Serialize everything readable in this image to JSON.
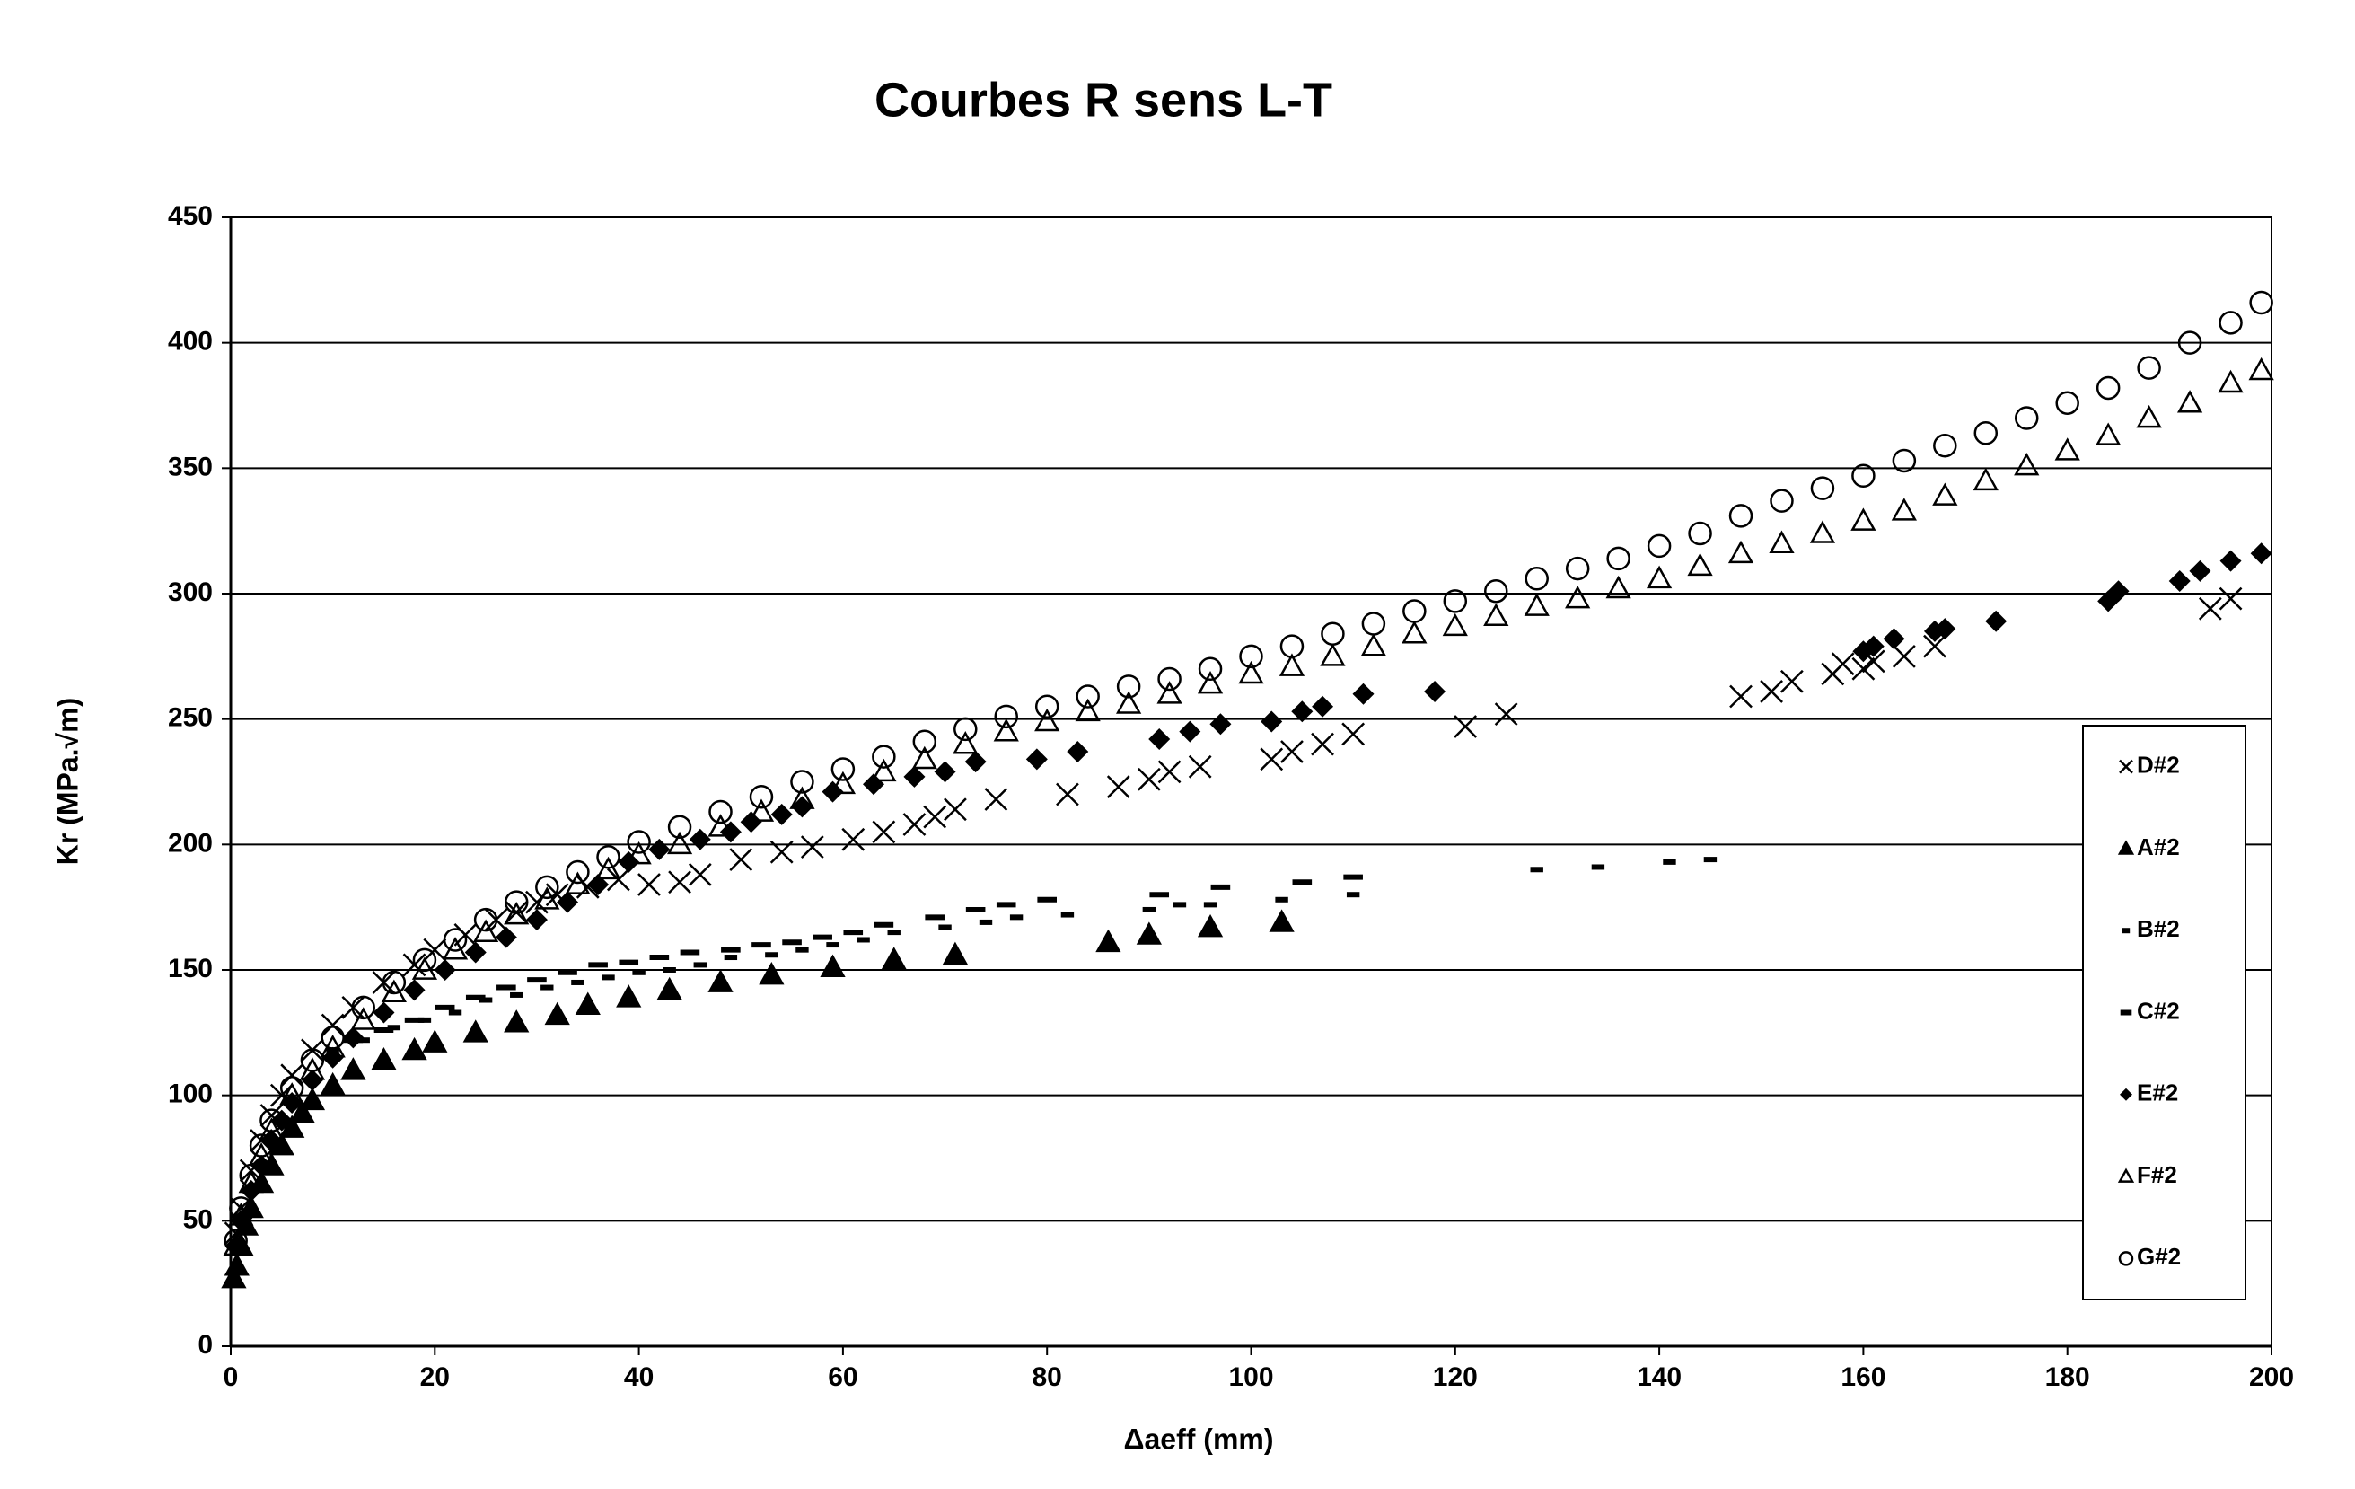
{
  "chart_data": {
    "type": "scatter",
    "title": "Courbes R sens L-T",
    "x_label": "Δaeff (mm)",
    "y_label": "Kr (MPa.√m)",
    "xlim": [
      0,
      200
    ],
    "ylim": [
      0,
      450
    ],
    "xticks": [
      0,
      20,
      40,
      60,
      80,
      100,
      120,
      140,
      160,
      180,
      200
    ],
    "yticks": [
      0,
      50,
      100,
      150,
      200,
      250,
      300,
      350,
      400,
      450
    ],
    "grid": "y",
    "legend": "right",
    "series": [
      {
        "name": "D#2",
        "color": "#000000",
        "marker": "x",
        "x": [
          0.5,
          1,
          2,
          3,
          4,
          5,
          6,
          8,
          10,
          12,
          15,
          18,
          20,
          23,
          26,
          28,
          30,
          32,
          35,
          38,
          41,
          44,
          46,
          50,
          54,
          57,
          61,
          64,
          67,
          69,
          71,
          75,
          82,
          87,
          90,
          92,
          95,
          102,
          104,
          107,
          110,
          121,
          125,
          148,
          151,
          153,
          157,
          158,
          160,
          161,
          164,
          167,
          194,
          196
        ],
        "y": [
          45,
          55,
          70,
          82,
          92,
          100,
          108,
          118,
          128,
          135,
          145,
          152,
          158,
          164,
          170,
          173,
          177,
          180,
          183,
          186,
          184,
          185,
          188,
          194,
          197,
          199,
          202,
          205,
          208,
          211,
          214,
          218,
          220,
          223,
          226,
          229,
          231,
          234,
          237,
          240,
          244,
          247,
          252,
          259,
          261,
          265,
          268,
          272,
          270,
          273,
          275,
          279,
          294,
          298
        ]
      },
      {
        "name": "A#2",
        "color": "#000000",
        "marker": "triangle",
        "x": [
          0.3,
          0.6,
          1,
          1.5,
          2,
          3,
          4,
          5,
          6,
          7,
          8,
          10,
          12,
          15,
          18,
          20,
          24,
          28,
          32,
          35,
          39,
          43,
          48,
          53,
          59,
          65,
          71,
          86,
          90,
          96,
          103
        ],
        "y": [
          27,
          32,
          40,
          48,
          55,
          65,
          72,
          80,
          87,
          93,
          98,
          104,
          110,
          114,
          118,
          121,
          125,
          129,
          132,
          136,
          139,
          142,
          145,
          148,
          151,
          154,
          156,
          161,
          164,
          167,
          169
        ]
      },
      {
        "name": "B#2",
        "color": "#000000",
        "marker": "dash",
        "x": [
          10,
          13,
          16,
          19,
          22,
          25,
          28,
          31,
          34,
          37,
          40,
          43,
          46,
          49,
          53,
          56,
          59,
          62,
          65,
          70,
          74,
          77,
          82,
          90,
          93,
          96,
          103,
          110,
          128,
          134,
          141,
          145
        ],
        "y": [
          118,
          122,
          127,
          130,
          133,
          138,
          140,
          143,
          145,
          147,
          149,
          150,
          152,
          155,
          156,
          158,
          160,
          162,
          165,
          167,
          169,
          171,
          172,
          174,
          176,
          176,
          178,
          180,
          190,
          191,
          193,
          194
        ]
      },
      {
        "name": "C#2",
        "color": "#000000",
        "marker": "dash-long",
        "x": [
          12,
          15,
          18,
          21,
          24,
          27,
          30,
          33,
          36,
          39,
          42,
          45,
          49,
          52,
          55,
          58,
          61,
          64,
          69,
          73,
          76,
          80,
          91,
          97,
          105,
          110
        ],
        "y": [
          122,
          126,
          130,
          135,
          139,
          143,
          146,
          149,
          152,
          153,
          155,
          157,
          158,
          160,
          161,
          163,
          165,
          168,
          171,
          174,
          176,
          178,
          180,
          183,
          185,
          187
        ]
      },
      {
        "name": "E#2",
        "color": "#000000",
        "marker": "diamond",
        "x": [
          0.5,
          1,
          2,
          3,
          4,
          5,
          6,
          8,
          10,
          12,
          15,
          18,
          21,
          24,
          27,
          30,
          33,
          36,
          39,
          42,
          46,
          49,
          51,
          54,
          56,
          59,
          63,
          67,
          70,
          73,
          79,
          83,
          91,
          94,
          97,
          102,
          105,
          107,
          111,
          118,
          160,
          161,
          163,
          167,
          168,
          173,
          184,
          185,
          191,
          193,
          196,
          199
        ],
        "y": [
          40,
          50,
          62,
          72,
          82,
          90,
          97,
          106,
          115,
          123,
          133,
          142,
          150,
          157,
          163,
          170,
          177,
          184,
          193,
          198,
          202,
          205,
          209,
          212,
          215,
          221,
          224,
          227,
          229,
          233,
          234,
          237,
          242,
          245,
          248,
          249,
          253,
          255,
          260,
          261,
          277,
          279,
          282,
          285,
          286,
          289,
          297,
          301,
          305,
          309,
          313,
          316
        ]
      },
      {
        "name": "F#2",
        "color": "#000000",
        "marker": "triangle-open",
        "x": [
          0.5,
          1,
          2,
          3,
          4,
          6,
          8,
          10,
          13,
          16,
          19,
          22,
          25,
          28,
          31,
          34,
          37,
          40,
          44,
          48,
          52,
          56,
          60,
          64,
          68,
          72,
          76,
          80,
          84,
          88,
          92,
          96,
          100,
          104,
          108,
          112,
          116,
          120,
          124,
          128,
          132,
          136,
          140,
          144,
          148,
          152,
          156,
          160,
          164,
          168,
          172,
          176,
          180,
          184,
          188,
          192,
          196,
          199
        ],
        "y": [
          40,
          52,
          65,
          76,
          86,
          100,
          110,
          119,
          130,
          141,
          150,
          158,
          165,
          172,
          178,
          184,
          190,
          196,
          200,
          207,
          213,
          218,
          224,
          229,
          234,
          240,
          245,
          249,
          253,
          256,
          260,
          264,
          268,
          271,
          275,
          279,
          284,
          287,
          291,
          295,
          298,
          302,
          306,
          311,
          316,
          320,
          324,
          329,
          333,
          339,
          345,
          351,
          357,
          363,
          370,
          376,
          384,
          389
        ]
      },
      {
        "name": "G#2",
        "color": "#000000",
        "marker": "circle-open",
        "x": [
          0.5,
          1,
          2,
          3,
          4,
          6,
          8,
          10,
          13,
          16,
          19,
          22,
          25,
          28,
          31,
          34,
          37,
          40,
          44,
          48,
          52,
          56,
          60,
          64,
          68,
          72,
          76,
          80,
          84,
          88,
          92,
          96,
          100,
          104,
          108,
          112,
          116,
          120,
          124,
          128,
          132,
          136,
          140,
          144,
          148,
          152,
          156,
          160,
          164,
          168,
          172,
          176,
          180,
          184,
          188,
          192,
          196,
          199
        ],
        "y": [
          42,
          55,
          68,
          80,
          90,
          103,
          114,
          123,
          135,
          145,
          154,
          162,
          170,
          177,
          183,
          189,
          195,
          201,
          207,
          213,
          219,
          225,
          230,
          235,
          241,
          246,
          251,
          255,
          259,
          263,
          266,
          270,
          275,
          279,
          284,
          288,
          293,
          297,
          301,
          306,
          310,
          314,
          319,
          324,
          331,
          337,
          342,
          347,
          353,
          359,
          364,
          370,
          376,
          382,
          390,
          400,
          408,
          416
        ]
      }
    ]
  }
}
